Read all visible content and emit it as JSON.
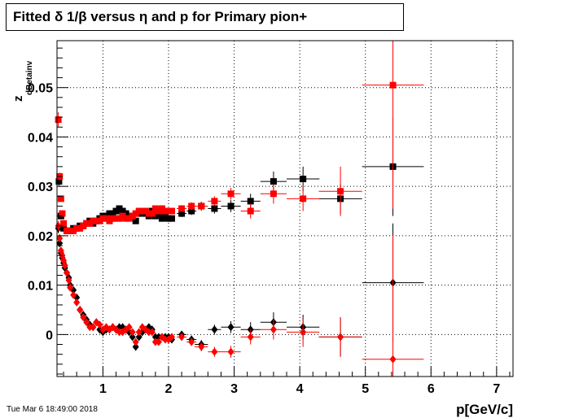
{
  "title": "Fitted δ 1/β versus η and p for Primary pion+",
  "footer_timestamp": "Tue Mar  6 18:49:00 2018",
  "chart_data": {
    "type": "scatter",
    "title": "Fitted δ 1/β versus η and p for Primary pion+",
    "xlabel": "p[GeV/c]",
    "ylabel": "z_{dBetainv}",
    "xlim": [
      0.3,
      7.25
    ],
    "ylim": [
      -0.0085,
      0.0595
    ],
    "grid": true,
    "x_ticks": [
      1,
      2,
      3,
      4,
      5,
      6,
      7
    ],
    "x_tick_labels": [
      "1",
      "2",
      "3",
      "4",
      "5",
      "6",
      "7"
    ],
    "y_ticks": [
      0,
      0.01,
      0.02,
      0.03,
      0.04,
      0.05
    ],
    "y_tick_labels": [
      "0",
      "0.01",
      "0.02",
      "0.03",
      "0.04",
      "0.05"
    ],
    "series": [
      {
        "color": "#000000",
        "marker": "square",
        "x": [
          0.33,
          0.36,
          0.4,
          0.45,
          0.5,
          0.55,
          0.6,
          0.65,
          0.7,
          0.75,
          0.8,
          0.85,
          0.9,
          0.95,
          1.0,
          1.05,
          1.1,
          1.15,
          1.2,
          1.25,
          1.3,
          1.35,
          1.4,
          1.45,
          1.5,
          1.55,
          1.6,
          1.65,
          1.7,
          1.75,
          1.8,
          1.85,
          1.9,
          1.95,
          2.0,
          2.05,
          2.2,
          2.35,
          2.5,
          2.7,
          2.95,
          3.25,
          3.6,
          4.05,
          4.62,
          5.42
        ],
        "y": [
          0.031,
          0.024,
          0.0215,
          0.021,
          0.021,
          0.0215,
          0.0215,
          0.022,
          0.022,
          0.0225,
          0.023,
          0.0225,
          0.023,
          0.0235,
          0.024,
          0.024,
          0.0245,
          0.0245,
          0.025,
          0.0255,
          0.025,
          0.0245,
          0.024,
          0.024,
          0.023,
          0.0245,
          0.025,
          0.0245,
          0.024,
          0.025,
          0.024,
          0.0245,
          0.0235,
          0.024,
          0.0235,
          0.0235,
          0.0245,
          0.025,
          0.026,
          0.0255,
          0.026,
          0.027,
          0.031,
          0.0315,
          0.0275,
          0.034
        ],
        "xerr": [
          0.015,
          0.015,
          0.02,
          0.025,
          0.025,
          0.025,
          0.025,
          0.025,
          0.025,
          0.025,
          0.025,
          0.025,
          0.025,
          0.025,
          0.025,
          0.025,
          0.025,
          0.025,
          0.025,
          0.025,
          0.025,
          0.025,
          0.025,
          0.025,
          0.025,
          0.025,
          0.025,
          0.025,
          0.025,
          0.025,
          0.025,
          0.025,
          0.025,
          0.025,
          0.025,
          0.025,
          0.075,
          0.075,
          0.1,
          0.1,
          0.15,
          0.15,
          0.2,
          0.25,
          0.33,
          0.47
        ],
        "yerr": [
          0.001,
          0.0006,
          0.0004,
          0.0003,
          0.0003,
          0.0003,
          0.0003,
          0.0003,
          0.0003,
          0.0003,
          0.0003,
          0.0003,
          0.0003,
          0.0003,
          0.0003,
          0.0003,
          0.0003,
          0.0003,
          0.0004,
          0.0004,
          0.0004,
          0.0004,
          0.0004,
          0.0004,
          0.0005,
          0.0005,
          0.0005,
          0.0005,
          0.0005,
          0.0005,
          0.0005,
          0.0005,
          0.0005,
          0.0005,
          0.0006,
          0.0006,
          0.0007,
          0.0008,
          0.0009,
          0.001,
          0.0012,
          0.0015,
          0.002,
          0.0025,
          0.003,
          0.01
        ]
      },
      {
        "color": "#ff0000",
        "marker": "square",
        "x": [
          0.32,
          0.34,
          0.36,
          0.38,
          0.4,
          0.45,
          0.5,
          0.55,
          0.6,
          0.65,
          0.7,
          0.75,
          0.8,
          0.85,
          0.9,
          0.95,
          1.0,
          1.05,
          1.1,
          1.15,
          1.2,
          1.25,
          1.3,
          1.35,
          1.4,
          1.45,
          1.5,
          1.55,
          1.6,
          1.65,
          1.7,
          1.75,
          1.8,
          1.85,
          1.9,
          1.95,
          2.0,
          2.05,
          2.2,
          2.35,
          2.5,
          2.7,
          2.95,
          3.25,
          3.6,
          4.05,
          4.62,
          5.42
        ],
        "y": [
          0.0435,
          0.032,
          0.0275,
          0.0245,
          0.0225,
          0.021,
          0.021,
          0.021,
          0.0215,
          0.0215,
          0.022,
          0.0225,
          0.0225,
          0.023,
          0.023,
          0.023,
          0.0235,
          0.0235,
          0.023,
          0.0235,
          0.0235,
          0.0235,
          0.024,
          0.0235,
          0.0235,
          0.024,
          0.0245,
          0.025,
          0.025,
          0.025,
          0.0245,
          0.0245,
          0.0255,
          0.025,
          0.0255,
          0.025,
          0.025,
          0.025,
          0.0255,
          0.026,
          0.026,
          0.027,
          0.0285,
          0.025,
          0.0285,
          0.0275,
          0.029,
          0.0505
        ],
        "xerr": [
          0.01,
          0.01,
          0.01,
          0.01,
          0.015,
          0.025,
          0.025,
          0.025,
          0.025,
          0.025,
          0.025,
          0.025,
          0.025,
          0.025,
          0.025,
          0.025,
          0.025,
          0.025,
          0.025,
          0.025,
          0.025,
          0.025,
          0.025,
          0.025,
          0.025,
          0.025,
          0.025,
          0.025,
          0.025,
          0.025,
          0.025,
          0.025,
          0.025,
          0.025,
          0.025,
          0.025,
          0.025,
          0.025,
          0.075,
          0.075,
          0.1,
          0.1,
          0.15,
          0.15,
          0.2,
          0.25,
          0.33,
          0.47
        ],
        "yerr": [
          0.0015,
          0.0008,
          0.0006,
          0.0005,
          0.0004,
          0.0003,
          0.0003,
          0.0003,
          0.0003,
          0.0003,
          0.0003,
          0.0003,
          0.0003,
          0.0003,
          0.0003,
          0.0003,
          0.0003,
          0.0003,
          0.0003,
          0.0003,
          0.0004,
          0.0004,
          0.0004,
          0.0004,
          0.0004,
          0.0004,
          0.0005,
          0.0005,
          0.0005,
          0.0005,
          0.0005,
          0.0005,
          0.0005,
          0.0005,
          0.0005,
          0.0005,
          0.0006,
          0.0006,
          0.0007,
          0.0008,
          0.0009,
          0.001,
          0.0012,
          0.0015,
          0.002,
          0.0025,
          0.005,
          0.025
        ]
      },
      {
        "color": "#000000",
        "marker": "diamond",
        "x": [
          0.32,
          0.34,
          0.36,
          0.38,
          0.4,
          0.42,
          0.45,
          0.48,
          0.5,
          0.55,
          0.6,
          0.65,
          0.7,
          0.75,
          0.8,
          0.85,
          0.9,
          0.95,
          1.0,
          1.05,
          1.1,
          1.15,
          1.2,
          1.25,
          1.3,
          1.35,
          1.4,
          1.45,
          1.5,
          1.55,
          1.6,
          1.65,
          1.7,
          1.75,
          1.8,
          1.85,
          1.9,
          1.95,
          2.0,
          2.05,
          2.2,
          2.35,
          2.5,
          2.7,
          2.95,
          3.25,
          3.6,
          4.05,
          4.62,
          5.42
        ],
        "y": [
          0.0215,
          0.0185,
          0.0165,
          0.0155,
          0.0145,
          0.0135,
          0.0125,
          0.0115,
          0.01,
          0.009,
          0.0075,
          0.005,
          0.004,
          0.003,
          0.002,
          0.0015,
          0.0025,
          0.001,
          0.0005,
          0.001,
          0.001,
          0.0015,
          0.001,
          0.0015,
          0.0015,
          0.001,
          0.0005,
          -0.0005,
          -0.0025,
          -0.0005,
          0.0005,
          0.001,
          0.0015,
          0.001,
          -0.0005,
          -0.0005,
          -0.0005,
          -0.0005,
          -0.0005,
          -0.001,
          0.0,
          -0.001,
          -0.002,
          0.001,
          0.0015,
          0.001,
          0.0025,
          0.0015,
          -0.0005,
          0.0105
        ],
        "xerr": [
          0.01,
          0.01,
          0.01,
          0.01,
          0.01,
          0.01,
          0.015,
          0.015,
          0.025,
          0.025,
          0.025,
          0.025,
          0.025,
          0.025,
          0.025,
          0.025,
          0.025,
          0.025,
          0.025,
          0.025,
          0.025,
          0.025,
          0.025,
          0.025,
          0.025,
          0.025,
          0.025,
          0.025,
          0.025,
          0.025,
          0.025,
          0.025,
          0.025,
          0.025,
          0.025,
          0.025,
          0.025,
          0.025,
          0.025,
          0.025,
          0.075,
          0.075,
          0.1,
          0.1,
          0.15,
          0.15,
          0.2,
          0.25,
          0.33,
          0.47
        ],
        "yerr": [
          0.001,
          0.0008,
          0.0006,
          0.0005,
          0.0004,
          0.0004,
          0.0003,
          0.0003,
          0.0003,
          0.0003,
          0.0003,
          0.0003,
          0.0003,
          0.0003,
          0.0003,
          0.0003,
          0.0003,
          0.0003,
          0.0003,
          0.0003,
          0.0003,
          0.0003,
          0.0003,
          0.0003,
          0.0004,
          0.0004,
          0.0004,
          0.0004,
          0.0005,
          0.0005,
          0.0005,
          0.0005,
          0.0005,
          0.0005,
          0.0005,
          0.0005,
          0.0005,
          0.0005,
          0.0006,
          0.0006,
          0.0007,
          0.0008,
          0.0009,
          0.001,
          0.0012,
          0.0015,
          0.002,
          0.0025,
          0.004,
          0.012
        ]
      },
      {
        "color": "#ff0000",
        "marker": "diamond",
        "x": [
          0.32,
          0.34,
          0.36,
          0.38,
          0.4,
          0.42,
          0.45,
          0.48,
          0.5,
          0.55,
          0.6,
          0.65,
          0.7,
          0.75,
          0.8,
          0.85,
          0.9,
          0.95,
          1.0,
          1.05,
          1.1,
          1.15,
          1.2,
          1.25,
          1.3,
          1.35,
          1.4,
          1.45,
          1.5,
          1.55,
          1.6,
          1.65,
          1.7,
          1.75,
          1.8,
          1.85,
          1.9,
          1.95,
          2.0,
          2.05,
          2.2,
          2.35,
          2.5,
          2.7,
          2.95,
          3.25,
          3.6,
          4.05,
          4.62,
          5.42
        ],
        "y": [
          0.022,
          0.0195,
          0.017,
          0.016,
          0.015,
          0.014,
          0.0125,
          0.011,
          0.0095,
          0.008,
          0.0065,
          0.005,
          0.0035,
          0.0025,
          0.0015,
          0.0015,
          0.0025,
          0.002,
          0.001,
          0.0015,
          0.001,
          0.0015,
          0.001,
          0.0005,
          0.0005,
          0.001,
          0.0015,
          0.0005,
          -0.0015,
          0.0005,
          0.0015,
          0.001,
          0.0005,
          0.0005,
          -0.0015,
          -0.0015,
          -0.0005,
          -0.001,
          -0.001,
          -0.0005,
          -0.0005,
          -0.0015,
          -0.0025,
          -0.0035,
          -0.0035,
          -0.0005,
          0.001,
          0.0005,
          -0.0005,
          -0.005
        ],
        "xerr": [
          0.01,
          0.01,
          0.01,
          0.01,
          0.01,
          0.01,
          0.015,
          0.015,
          0.025,
          0.025,
          0.025,
          0.025,
          0.025,
          0.025,
          0.025,
          0.025,
          0.025,
          0.025,
          0.025,
          0.025,
          0.025,
          0.025,
          0.025,
          0.025,
          0.025,
          0.025,
          0.025,
          0.025,
          0.025,
          0.025,
          0.025,
          0.025,
          0.025,
          0.025,
          0.025,
          0.025,
          0.025,
          0.025,
          0.025,
          0.025,
          0.075,
          0.075,
          0.1,
          0.1,
          0.15,
          0.15,
          0.2,
          0.25,
          0.33,
          0.47
        ],
        "yerr": [
          0.001,
          0.0008,
          0.0006,
          0.0005,
          0.0004,
          0.0004,
          0.0003,
          0.0003,
          0.0003,
          0.0003,
          0.0003,
          0.0003,
          0.0003,
          0.0003,
          0.0003,
          0.0003,
          0.0003,
          0.0003,
          0.0003,
          0.0003,
          0.0003,
          0.0003,
          0.0003,
          0.0003,
          0.0004,
          0.0004,
          0.0004,
          0.0004,
          0.0005,
          0.0005,
          0.0005,
          0.0005,
          0.0005,
          0.0005,
          0.0005,
          0.0005,
          0.0005,
          0.0005,
          0.0006,
          0.0006,
          0.0007,
          0.0008,
          0.0009,
          0.001,
          0.0012,
          0.0015,
          0.002,
          0.003,
          0.004,
          0.025
        ]
      }
    ]
  }
}
